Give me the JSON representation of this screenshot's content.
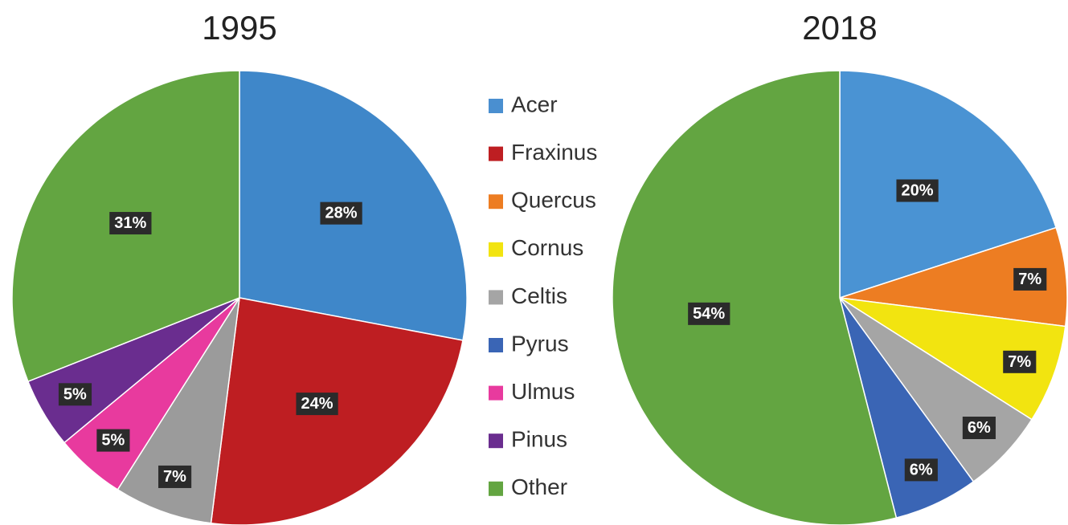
{
  "chart_data": [
    {
      "type": "pie",
      "title": "1995",
      "categories": [
        "Acer",
        "Fraxinus",
        "Celtis",
        "Ulmus",
        "Pinus",
        "Other"
      ],
      "values": [
        28,
        24,
        7,
        5,
        5,
        31
      ],
      "value_labels": [
        "28%",
        "24%",
        "7%",
        "5%",
        "5%",
        "31%"
      ],
      "colors": [
        "#3f87c9",
        "#be1e22",
        "#9b9b9b",
        "#e83a9e",
        "#6a2d8f",
        "#63a541"
      ]
    },
    {
      "type": "pie",
      "title": "2018",
      "categories": [
        "Acer",
        "Quercus",
        "Cornus",
        "Celtis",
        "Pyrus",
        "Other"
      ],
      "values": [
        20,
        7,
        7,
        6,
        6,
        54
      ],
      "value_labels": [
        "20%",
        "7%",
        "7%",
        "6%",
        "6%",
        "54%"
      ],
      "colors": [
        "#4a93d3",
        "#ed7d22",
        "#f2e410",
        "#a5a5a5",
        "#3a65b5",
        "#63a541"
      ]
    }
  ],
  "legend": {
    "names": [
      "Acer",
      "Fraxinus",
      "Quercus",
      "Cornus",
      "Celtis",
      "Pyrus",
      "Ulmus",
      "Pinus",
      "Other"
    ],
    "colors": [
      "#4a8fd0",
      "#be1e22",
      "#ed7d22",
      "#f2e410",
      "#a5a5a5",
      "#3a65b5",
      "#e83a9e",
      "#6a2d8f",
      "#63a541"
    ]
  }
}
